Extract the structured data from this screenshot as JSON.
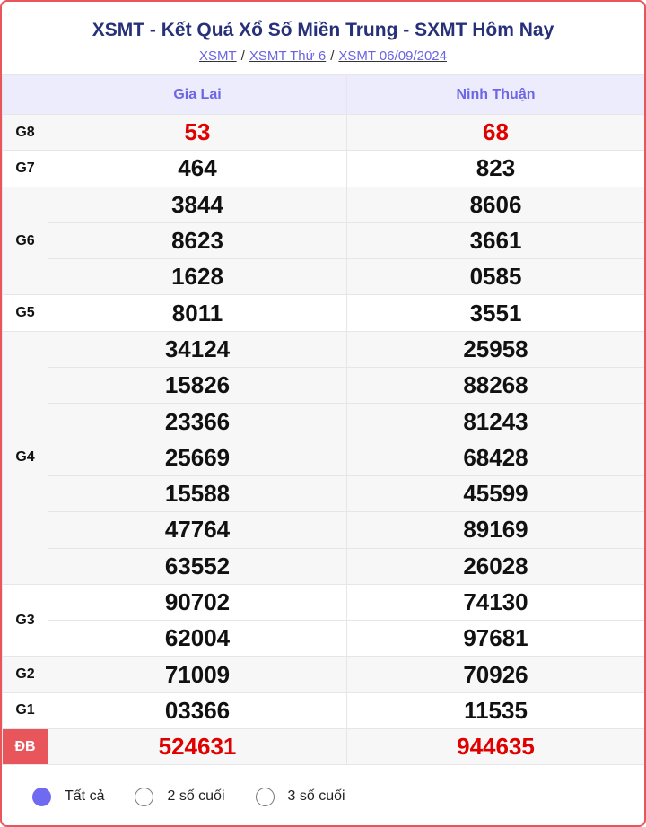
{
  "title": "XSMT - Kết Quả Xổ Số Miền Trung - SXMT Hôm Nay",
  "breadcrumb": [
    "XSMT",
    "XSMT Thứ 6",
    "XSMT 06/09/2024"
  ],
  "provinces": [
    "Gia Lai",
    "Ninh Thuận"
  ],
  "prizes": [
    {
      "label": "G8",
      "a": [
        "53"
      ],
      "b": [
        "68"
      ],
      "red": true
    },
    {
      "label": "G7",
      "a": [
        "464"
      ],
      "b": [
        "823"
      ]
    },
    {
      "label": "G6",
      "a": [
        "3844",
        "8623",
        "1628"
      ],
      "b": [
        "8606",
        "3661",
        "0585"
      ]
    },
    {
      "label": "G5",
      "a": [
        "8011"
      ],
      "b": [
        "3551"
      ]
    },
    {
      "label": "G4",
      "a": [
        "34124",
        "15826",
        "23366",
        "25669",
        "15588",
        "47764",
        "63552"
      ],
      "b": [
        "25958",
        "88268",
        "81243",
        "68428",
        "45599",
        "89169",
        "26028"
      ]
    },
    {
      "label": "G3",
      "a": [
        "90702",
        "62004"
      ],
      "b": [
        "74130",
        "97681"
      ]
    },
    {
      "label": "G2",
      "a": [
        "71009"
      ],
      "b": [
        "70926"
      ]
    },
    {
      "label": "G1",
      "a": [
        "03366"
      ],
      "b": [
        "11535"
      ]
    },
    {
      "label": "ĐB",
      "a": [
        "524631"
      ],
      "b": [
        "944635"
      ],
      "red": true,
      "special": true
    }
  ],
  "filters": [
    {
      "label": "Tất cả",
      "selected": true
    },
    {
      "label": "2 số cuối",
      "selected": false
    },
    {
      "label": "3 số cuối",
      "selected": false
    }
  ],
  "colors": {
    "accent": "#6f6af0",
    "border": "#e8565c",
    "prize_red": "#e00000",
    "title": "#27317a"
  }
}
